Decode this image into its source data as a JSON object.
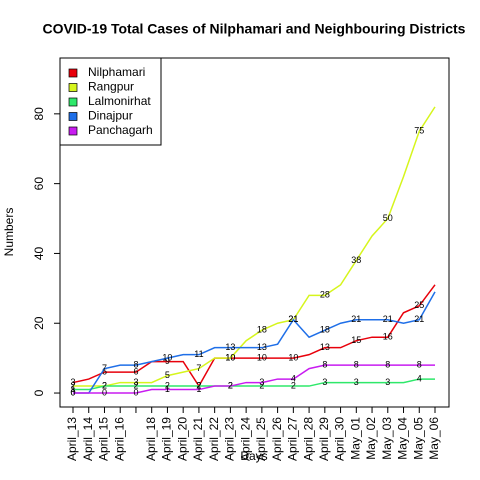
{
  "chart_data": {
    "type": "line",
    "title": "COVID-19 Total Cases of Nilphamari and Neighbouring Districts",
    "x_label": "Days",
    "y_label": "Numbers",
    "categories": [
      "April_13",
      "April_14",
      "April_15",
      "April_16",
      null,
      "April_18",
      "April_19",
      "April_20",
      "April_21",
      "April_22",
      "April_23",
      "April_24",
      "April_25",
      "April_26",
      "April_27",
      "April_28",
      "April_29",
      "April_30",
      "May_01",
      "May_02",
      "May_03",
      "May_04",
      "May_05",
      "May_06"
    ],
    "series": [
      {
        "name": "Nilphamari",
        "color": "#e8000b",
        "values": [
          3,
          4,
          6,
          6,
          6,
          9,
          9,
          9,
          2,
          10,
          10,
          10,
          10,
          10,
          10,
          11,
          13,
          13,
          15,
          16,
          16,
          23,
          25,
          31
        ]
      },
      {
        "name": "Rangpur",
        "color": "#d6f51c",
        "values": [
          2,
          2,
          2,
          3,
          3,
          3,
          5,
          6,
          7,
          10,
          10,
          15,
          18,
          20,
          21,
          28,
          28,
          31,
          38,
          45,
          50,
          62,
          75,
          82
        ]
      },
      {
        "name": "Lalmonirhat",
        "color": "#2ee86a",
        "values": [
          1,
          1,
          2,
          2,
          2,
          2,
          2,
          2,
          2,
          2,
          2,
          2,
          2,
          2,
          2,
          2,
          3,
          3,
          3,
          3,
          3,
          3,
          4,
          4
        ]
      },
      {
        "name": "Dinajpur",
        "color": "#1f6fe8",
        "values": [
          0,
          0,
          7,
          8,
          8,
          9,
          10,
          11,
          11,
          13,
          13,
          13,
          13,
          14,
          21,
          16,
          18,
          20,
          21,
          21,
          21,
          20,
          21,
          29
        ]
      },
      {
        "name": "Panchagarh",
        "color": "#c81cf0",
        "values": [
          0,
          0,
          0,
          0,
          0,
          1,
          1,
          1,
          1,
          2,
          2,
          3,
          3,
          4,
          4,
          7,
          8,
          8,
          8,
          8,
          8,
          8,
          8,
          8
        ]
      }
    ],
    "ylim": [
      -4,
      96
    ],
    "yticks": [
      0,
      20,
      40,
      60,
      80
    ],
    "legend": "top-left"
  }
}
